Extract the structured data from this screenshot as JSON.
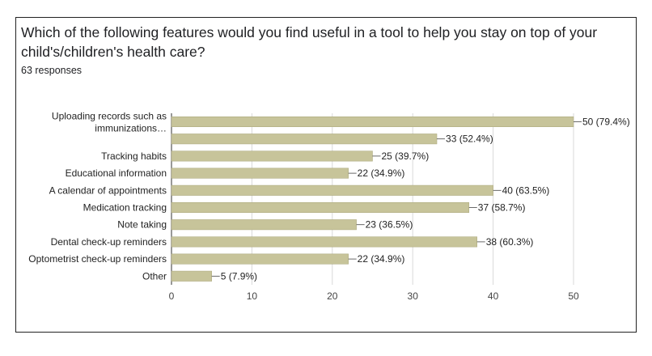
{
  "question": {
    "title": "Which of the following features would you find useful in a tool to help you stay on top of your child's/children's health care?",
    "responses": "63 responses"
  },
  "colors": {
    "bar": "#c7c49a",
    "bar_stroke": "#a9a67a",
    "grid": "#d9d9d9",
    "axis": "#555555",
    "text": "#202124"
  },
  "chart_data": {
    "type": "bar",
    "orientation": "horizontal",
    "categories": [
      [
        "Uploading records such as",
        "immunizations…"
      ],
      [],
      [
        "Tracking habits"
      ],
      [
        "Educational information"
      ],
      [
        "A calendar of appointments"
      ],
      [
        "Medication tracking"
      ],
      [
        "Note taking"
      ],
      [
        "Dental check-up reminders"
      ],
      [
        "Optometrist check-up reminders"
      ],
      [
        "Other"
      ]
    ],
    "values": [
      50,
      33,
      25,
      22,
      40,
      37,
      23,
      38,
      22,
      5
    ],
    "labels": [
      "50 (79.4%)",
      "33 (52.4%)",
      "25 (39.7%)",
      "22 (34.9%)",
      "40 (63.5%)",
      "37 (58.7%)",
      "23 (36.5%)",
      "38 (60.3%)",
      "22 (34.9%)",
      "5 (7.9%)"
    ],
    "xlim": [
      0,
      50
    ],
    "xticks": [
      "0",
      "10",
      "20",
      "30",
      "40",
      "50"
    ],
    "grid": true
  }
}
